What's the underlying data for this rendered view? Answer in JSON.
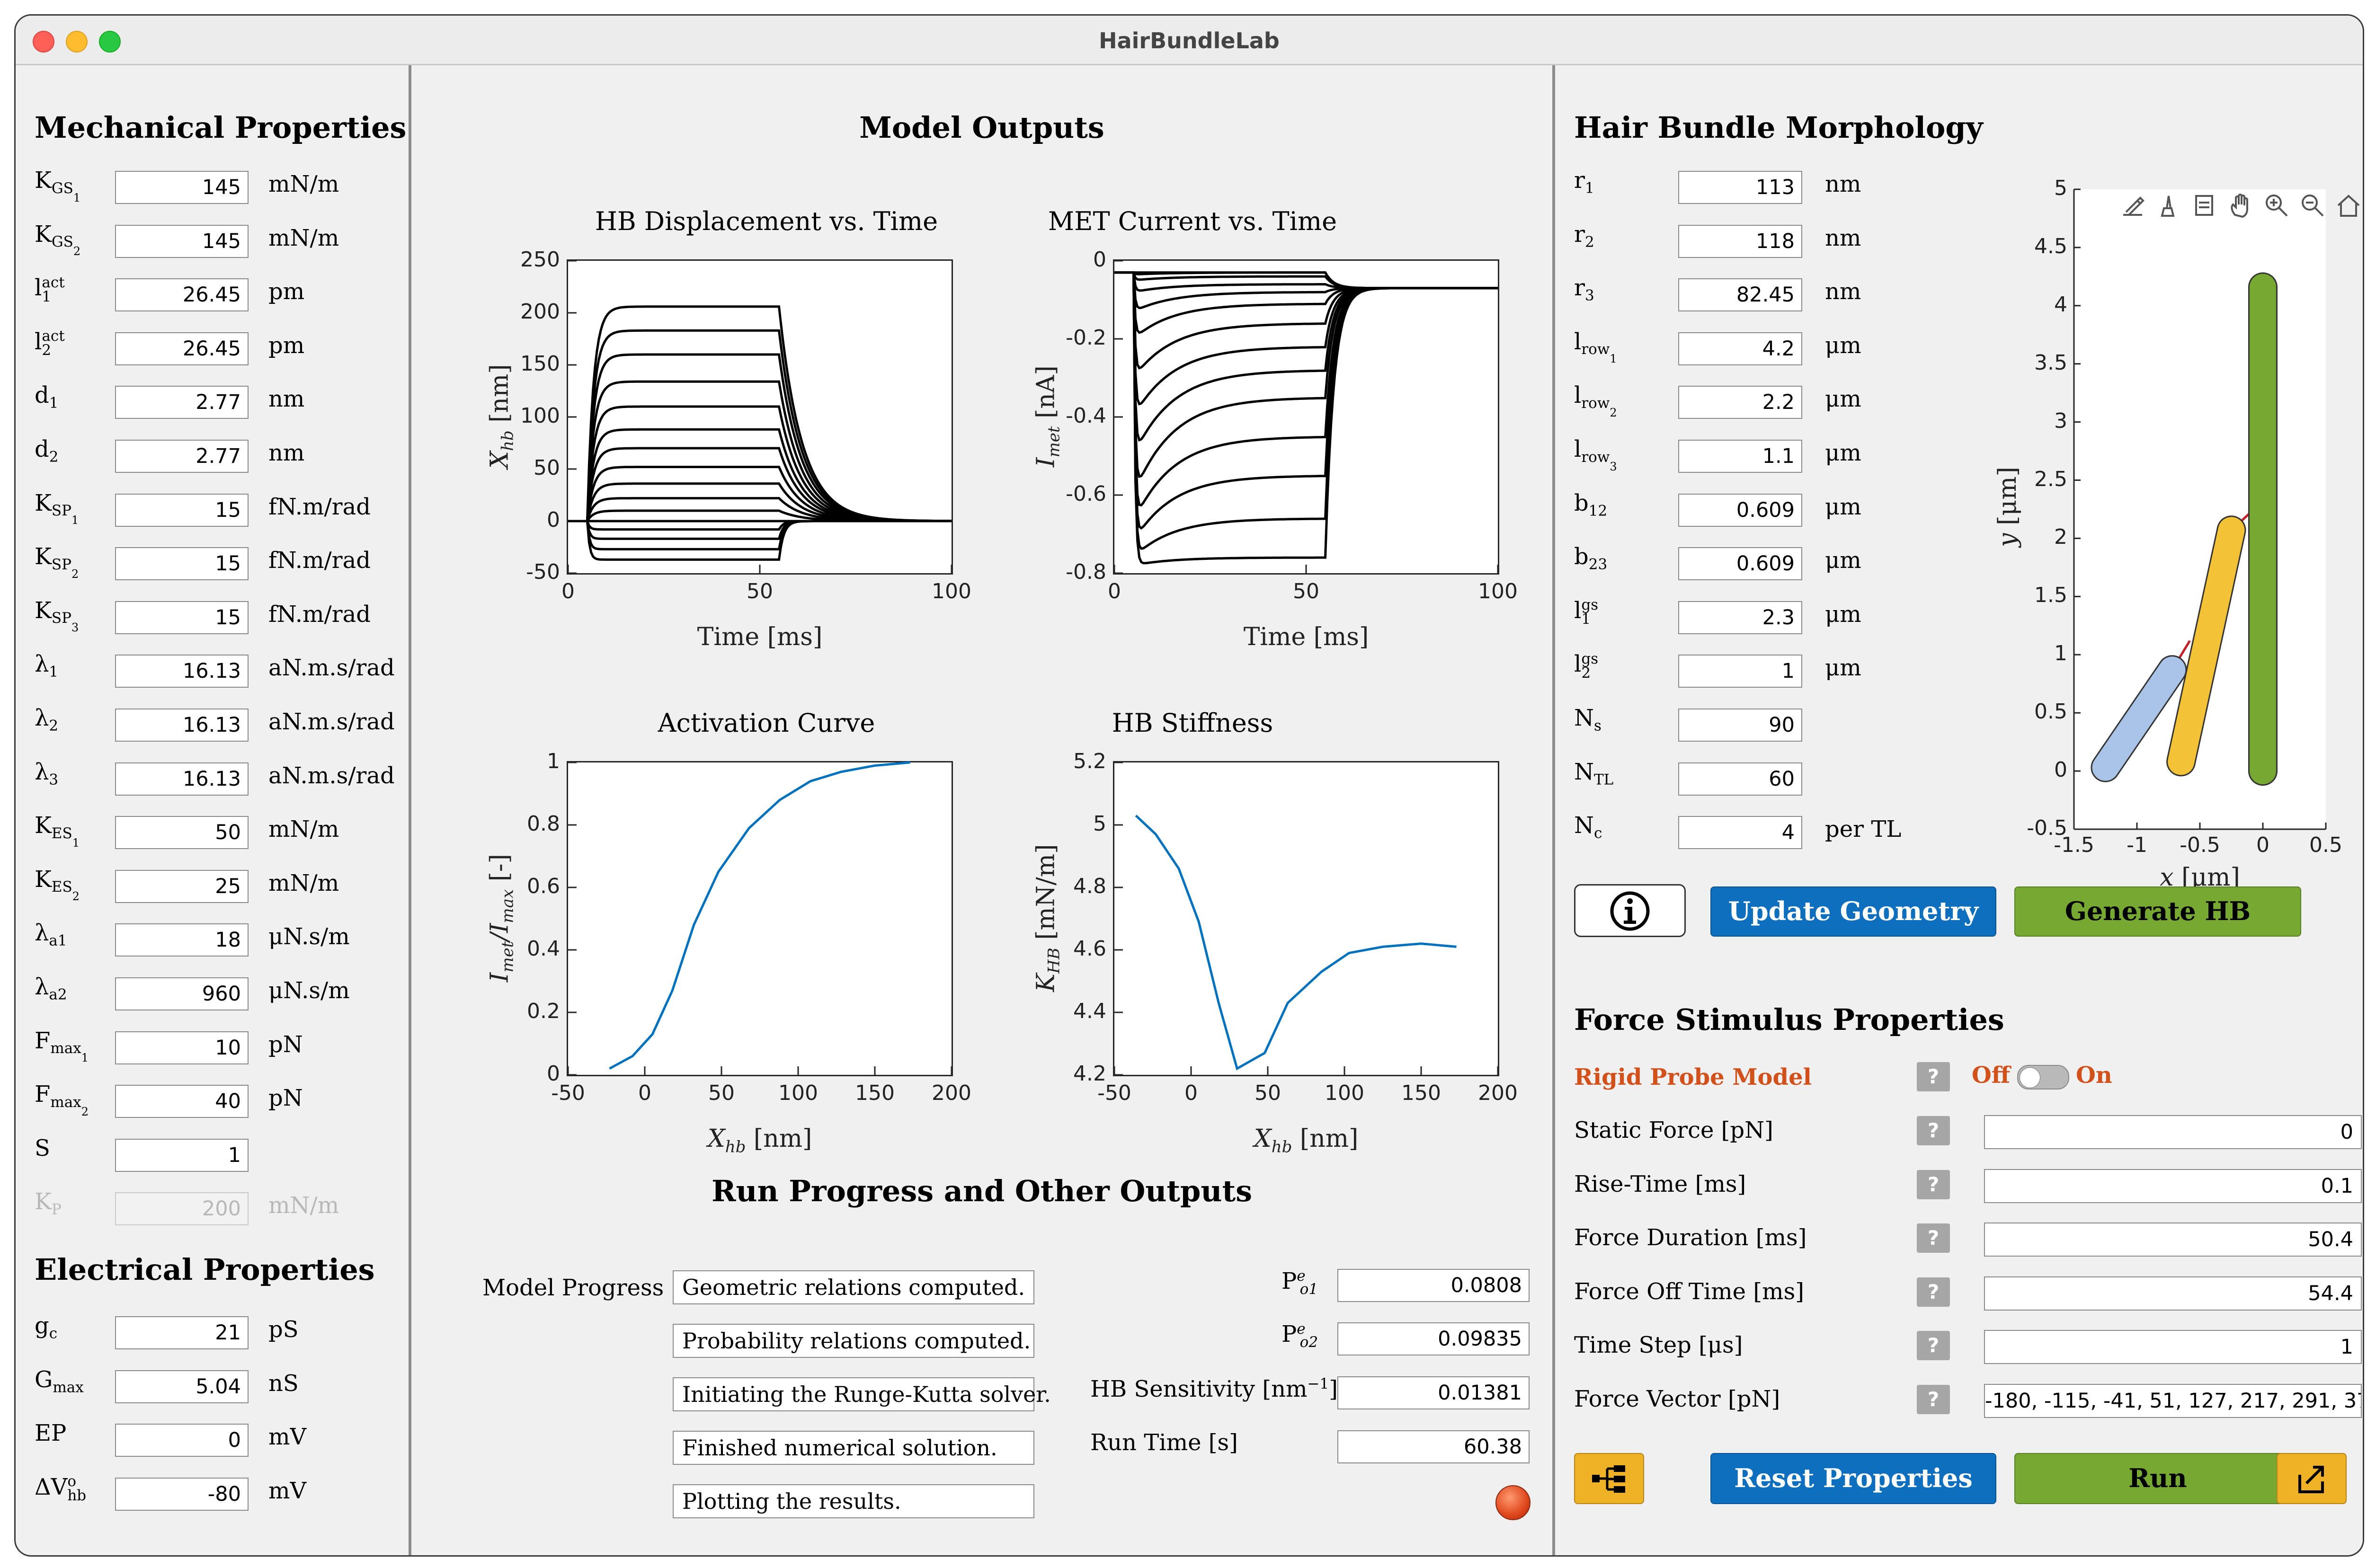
{
  "window": {
    "title": "HairBundleLab"
  },
  "mechanical": {
    "title": "Mechanical Properties",
    "rows": [
      {
        "name": "K",
        "sub": "GS",
        "sub2": "1",
        "value": "145",
        "unit": "mN/m"
      },
      {
        "name": "K",
        "sub": "GS",
        "sub2": "2",
        "value": "145",
        "unit": "mN/m"
      },
      {
        "name": "l",
        "sub": "1",
        "sup": "act",
        "value": "26.45",
        "unit": "pm"
      },
      {
        "name": "l",
        "sub": "2",
        "sup": "act",
        "value": "26.45",
        "unit": "pm"
      },
      {
        "name": "d",
        "sub": "1",
        "value": "2.77",
        "unit": "nm"
      },
      {
        "name": "d",
        "sub": "2",
        "value": "2.77",
        "unit": "nm"
      },
      {
        "name": "K",
        "sub": "SP",
        "sub2": "1",
        "value": "15",
        "unit": "fN.m/rad"
      },
      {
        "name": "K",
        "sub": "SP",
        "sub2": "2",
        "value": "15",
        "unit": "fN.m/rad"
      },
      {
        "name": "K",
        "sub": "SP",
        "sub2": "3",
        "value": "15",
        "unit": "fN.m/rad"
      },
      {
        "name": "λ",
        "sub": "1",
        "value": "16.13",
        "unit": "aN.m.s/rad"
      },
      {
        "name": "λ",
        "sub": "2",
        "value": "16.13",
        "unit": "aN.m.s/rad"
      },
      {
        "name": "λ",
        "sub": "3",
        "value": "16.13",
        "unit": "aN.m.s/rad"
      },
      {
        "name": "K",
        "sub": "ES",
        "sub2": "1",
        "value": "50",
        "unit": "mN/m"
      },
      {
        "name": "K",
        "sub": "ES",
        "sub2": "2",
        "value": "25",
        "unit": "mN/m"
      },
      {
        "name": "λ",
        "sub": "a1",
        "value": "18",
        "unit": "μN.s/m"
      },
      {
        "name": "λ",
        "sub": "a2",
        "value": "960",
        "unit": "μN.s/m"
      },
      {
        "name": "F",
        "sub": "max",
        "sub2": "1",
        "value": "10",
        "unit": "pN"
      },
      {
        "name": "F",
        "sub": "max",
        "sub2": "2",
        "value": "40",
        "unit": "pN"
      },
      {
        "name": "S",
        "value": "1",
        "unit": ""
      },
      {
        "name": "K",
        "sub": "P",
        "value": "200",
        "unit": "mN/m",
        "disabled": true
      }
    ]
  },
  "electrical": {
    "title": "Electrical Properties",
    "rows": [
      {
        "name": "g",
        "sub": "c",
        "value": "21",
        "unit": "pS"
      },
      {
        "name": "G",
        "sub": "max",
        "value": "5.04",
        "unit": "nS"
      },
      {
        "name": "EP",
        "value": "0",
        "unit": "mV"
      },
      {
        "name": "ΔV",
        "sub": "hb",
        "sup": "o",
        "value": "-80",
        "unit": "mV"
      }
    ]
  },
  "outputs": {
    "title": "Model Outputs",
    "charts": {
      "disp": {
        "title": "HB Displacement vs. Time",
        "xlabel": "Time [ms]",
        "ylabel": "X",
        "ylabel_sub": "hb",
        "ylabel_unit": " [nm]"
      },
      "met": {
        "title": "MET Current vs. Time",
        "xlabel": "Time [ms]",
        "ylabel": "I",
        "ylabel_sub": "met",
        "ylabel_unit": " [nA]"
      },
      "act": {
        "title": "Activation Curve",
        "xlabel": "X",
        "xlabel_sub": "hb",
        "xlabel_unit": " [nm]",
        "ylabel": "I",
        "ylabel_sub": "met",
        "ylabel_mid": "/I",
        "ylabel_sub2": "max",
        "ylabel_unit": " [-]"
      },
      "stiff": {
        "title": "HB Stiffness",
        "xlabel": "X",
        "xlabel_sub": "hb",
        "xlabel_unit": " [nm]",
        "ylabel": "K",
        "ylabel_sub": "HB",
        "ylabel_unit": " [mN/m]"
      }
    }
  },
  "chart_data": [
    {
      "type": "line",
      "name": "disp",
      "title": "HB Displacement vs. Time",
      "xlabel": "Time [ms]",
      "ylabel": "X_hb [nm]",
      "xlim": [
        0,
        100
      ],
      "ylim": [
        -50,
        250
      ],
      "xticks": [
        "0",
        "50",
        "100"
      ],
      "yticks": [
        "-50",
        "0",
        "50",
        "100",
        "150",
        "200",
        "250"
      ],
      "stim_on": 5,
      "stim_off": 55,
      "plateaus": [
        -37,
        -27,
        -17,
        -8,
        0,
        10,
        22,
        36,
        52,
        70,
        88,
        110,
        134,
        160,
        183,
        206
      ]
    },
    {
      "type": "line",
      "name": "met",
      "title": "MET Current vs. Time",
      "xlabel": "Time [ms]",
      "ylabel": "I_met [nA]",
      "xlim": [
        0,
        100
      ],
      "ylim": [
        -0.8,
        0
      ],
      "xticks": [
        "0",
        "50",
        "100"
      ],
      "yticks": [
        "-0.8",
        "-0.6",
        "-0.4",
        "-0.2",
        "0"
      ],
      "stim_on": 5,
      "stim_off": 55,
      "resting": -0.07,
      "peaks": [
        -0.03,
        -0.035,
        -0.05,
        -0.08,
        -0.13,
        -0.2,
        -0.3,
        -0.4,
        -0.5,
        -0.6,
        -0.67,
        -0.72,
        -0.76,
        -0.78
      ],
      "ends": [
        -0.03,
        -0.03,
        -0.04,
        -0.06,
        -0.08,
        -0.11,
        -0.16,
        -0.22,
        -0.28,
        -0.35,
        -0.45,
        -0.55,
        -0.66,
        -0.76
      ]
    },
    {
      "type": "line",
      "name": "act",
      "title": "Activation Curve",
      "xlabel": "X_hb [nm]",
      "ylabel": "I_met/I_max [-]",
      "xlim": [
        -50,
        200
      ],
      "ylim": [
        0,
        1
      ],
      "xticks": [
        "-50",
        "0",
        "50",
        "100",
        "150",
        "200"
      ],
      "yticks": [
        "0",
        "0.2",
        "0.4",
        "0.6",
        "0.8",
        "1"
      ],
      "x": [
        -23,
        -8,
        5,
        18,
        32,
        48,
        68,
        88,
        108,
        128,
        150,
        173
      ],
      "y": [
        0.02,
        0.06,
        0.13,
        0.27,
        0.48,
        0.65,
        0.79,
        0.88,
        0.94,
        0.97,
        0.99,
        1.0
      ]
    },
    {
      "type": "line",
      "name": "stiff",
      "title": "HB Stiffness",
      "xlabel": "X_hb [nm]",
      "ylabel": "K_HB [mN/m]",
      "xlim": [
        -50,
        200
      ],
      "ylim": [
        4.2,
        5.2
      ],
      "xticks": [
        "-50",
        "0",
        "50",
        "100",
        "150",
        "200"
      ],
      "yticks": [
        "4.2",
        "4.4",
        "4.6",
        "4.8",
        "5",
        "5.2"
      ],
      "x": [
        -36,
        -23,
        -8,
        5,
        18,
        30,
        48,
        63,
        85,
        103,
        125,
        150,
        173
      ],
      "y": [
        5.03,
        4.97,
        4.86,
        4.69,
        4.43,
        4.22,
        4.27,
        4.43,
        4.53,
        4.59,
        4.61,
        4.62,
        4.61
      ]
    },
    {
      "type": "scatter",
      "name": "geometry",
      "xlabel": "x [μm]",
      "ylabel": "y [μm]",
      "xlim": [
        -1.5,
        0.5
      ],
      "ylim": [
        -0.5,
        5
      ],
      "xticks": [
        "-1.5",
        "-1",
        "-0.5",
        "0",
        "0.5"
      ],
      "yticks": [
        "-0.5",
        "0",
        "0.5",
        "1",
        "1.5",
        "2",
        "2.5",
        "3",
        "3.5",
        "4",
        "4.5",
        "5"
      ],
      "stereocilia": [
        {
          "x0": -1.25,
          "y0": 0.03,
          "x1": -0.72,
          "y1": 0.87,
          "color": "#a9c4e6"
        },
        {
          "x0": -0.65,
          "y0": 0.08,
          "x1": -0.25,
          "y1": 2.07,
          "color": "#f3c237"
        },
        {
          "x0": 0.0,
          "y0": 0.0,
          "x1": 0.0,
          "y1": 4.16,
          "color": "#76a832"
        }
      ]
    }
  ],
  "progress": {
    "title": "Run Progress and Other Outputs",
    "label": "Model Progress",
    "messages": [
      "Geometric relations computed.",
      "Probability relations computed.",
      "Initiating the Runge-Kutta solver.",
      "Finished numerical solution.",
      "Plotting the results."
    ],
    "pe1_label": "P",
    "pe1_sup": "e",
    "pe1_sub": "o1",
    "pe1": "0.0808",
    "pe2_label": "P",
    "pe2_sup": "e",
    "pe2_sub": "o2",
    "pe2": "0.09835",
    "sens_label": "HB Sensitivity [nm",
    "sens_sup": "−1",
    "sens_end": "]",
    "sens": "0.01381",
    "runtime_label": "Run Time [s]",
    "runtime": "60.38",
    "lamp_color": "#e0461c"
  },
  "morphology": {
    "title": "Hair Bundle Morphology",
    "rows": [
      {
        "name": "r",
        "sub": "1",
        "value": "113",
        "unit": "nm"
      },
      {
        "name": "r",
        "sub": "2",
        "value": "118",
        "unit": "nm"
      },
      {
        "name": "r",
        "sub": "3",
        "value": "82.45",
        "unit": "nm"
      },
      {
        "name": "l",
        "sub": "row",
        "sub2": "1",
        "value": "4.2",
        "unit": "μm"
      },
      {
        "name": "l",
        "sub": "row",
        "sub2": "2",
        "value": "2.2",
        "unit": "μm"
      },
      {
        "name": "l",
        "sub": "row",
        "sub2": "3",
        "value": "1.1",
        "unit": "μm"
      },
      {
        "name": "b",
        "sub": "12",
        "value": "0.609",
        "unit": "μm"
      },
      {
        "name": "b",
        "sub": "23",
        "value": "0.609",
        "unit": "μm"
      },
      {
        "name": "l",
        "sub": "1",
        "sup": "gs",
        "value": "2.3",
        "unit": "μm"
      },
      {
        "name": "l",
        "sub": "2",
        "sup": "gs",
        "value": "1",
        "unit": "μm"
      },
      {
        "name": "N",
        "sub": "s",
        "value": "90",
        "unit": ""
      },
      {
        "name": "N",
        "sub": "TL",
        "value": "60",
        "unit": ""
      },
      {
        "name": "N",
        "sub": "c",
        "value": "4",
        "unit": "per TL"
      }
    ],
    "geometry_xlabel": "x",
    "geometry_xunit": " [μm]",
    "geometry_ylabel": "y",
    "geometry_yunit": " [μm]",
    "info_icon": "info-icon",
    "update_label": "Update Geometry",
    "generate_label": "Generate HB"
  },
  "force": {
    "title": "Force Stimulus Properties",
    "rigid_label": "Rigid Probe Model",
    "switch_off": "Off",
    "switch_on": "On",
    "help_glyph": "?",
    "fields": [
      {
        "label": "Static Force [pN]",
        "value": "0"
      },
      {
        "label": "Rise-Time [ms]",
        "value": "0.1"
      },
      {
        "label": "Force Duration [ms]",
        "value": "50.4"
      },
      {
        "label": "Force Off Time [ms]",
        "value": "54.4"
      },
      {
        "label": "Time Step [μs]",
        "value": "1"
      },
      {
        "label": "Force Vector [pN]",
        "value": "-180, -115, -41, 51, 127, 217, 291, 37"
      }
    ],
    "reset_label": "Reset Properties",
    "run_label": "Run",
    "accent": "#d2501a"
  }
}
